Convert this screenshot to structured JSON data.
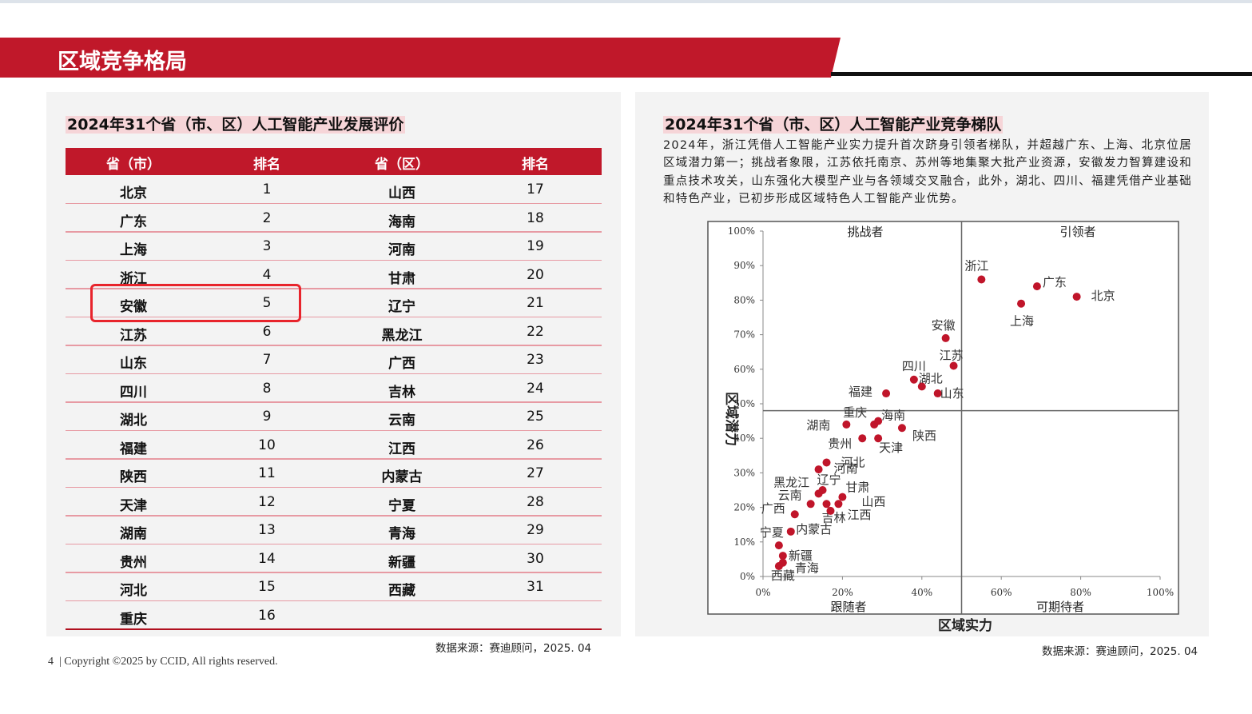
{
  "header": {
    "title": "区域竞争格局"
  },
  "left_panel": {
    "title": "2024年31个省（市、区）人工智能产业发展评价",
    "table": {
      "columns": [
        "省（市）",
        "排名",
        "省（区）",
        "排名"
      ],
      "rows": [
        [
          "北京",
          1,
          "山西",
          17
        ],
        [
          "广东",
          2,
          "海南",
          18
        ],
        [
          "上海",
          3,
          "河南",
          19
        ],
        [
          "浙江",
          4,
          "甘肃",
          20
        ],
        [
          "安徽",
          5,
          "辽宁",
          21
        ],
        [
          "江苏",
          6,
          "黑龙江",
          22
        ],
        [
          "山东",
          7,
          "广西",
          23
        ],
        [
          "四川",
          8,
          "吉林",
          24
        ],
        [
          "湖北",
          9,
          "云南",
          25
        ],
        [
          "福建",
          10,
          "江西",
          26
        ],
        [
          "陕西",
          11,
          "内蒙古",
          27
        ],
        [
          "天津",
          12,
          "宁夏",
          28
        ],
        [
          "湖南",
          13,
          "青海",
          29
        ],
        [
          "贵州",
          14,
          "新疆",
          30
        ],
        [
          "河北",
          15,
          "西藏",
          31
        ],
        [
          "重庆",
          16
        ]
      ]
    },
    "source": "数据来源：赛迪顾问，2025. 04"
  },
  "right_panel": {
    "title": "2024年31个省（市、区）人工智能产业竞争梯队",
    "paragraph": "2024年，浙江凭借人工智能产业实力提升首次跻身引领者梯队，并超越广东、上海、北京位居区域潜力第一；挑战者象限，江苏依托南京、苏州等地集聚大批产业资源，安徽发力智算建设和重点技术攻关，山东强化大模型产业与各领域交叉融合，此外，湖北、四川、福建凭借产业基础和特色产业，已初步形成区域特色人工智能产业优势。",
    "source": "数据来源：赛迪顾问，2025. 04"
  },
  "chart_data": {
    "type": "scatter",
    "x_label": "区域实力",
    "y_label": "区域潜力",
    "quadrants": {
      "top_left": "挑战者",
      "top_right": "引领者",
      "bottom_left": "跟随者",
      "bottom_right": "可期待者"
    },
    "quadrant_x": 50,
    "quadrant_y": 48,
    "color": "#c0152a",
    "labels": [
      "浙江",
      "广东",
      "北京",
      "上海",
      "安徽",
      "江苏",
      "四川",
      "湖北",
      "山东",
      "福建",
      "重庆",
      "海南",
      "湖南",
      "陕西",
      "贵州",
      "天津",
      "河北",
      "河南",
      "辽宁",
      "黑龙江",
      "甘肃",
      "云南",
      "吉林",
      "山西",
      "江西",
      "广西",
      "内蒙古",
      "宁夏",
      "新疆",
      "青海",
      "西藏"
    ],
    "x": [
      55,
      69,
      79,
      65,
      46,
      48,
      38,
      40,
      44,
      31,
      28,
      29,
      21,
      35,
      25,
      29,
      16,
      14,
      15,
      14,
      20,
      12,
      16,
      19,
      17,
      8,
      7,
      4,
      5,
      5,
      4
    ],
    "y": [
      86,
      84,
      81,
      79,
      69,
      61,
      57,
      55,
      53,
      53,
      44,
      45,
      44,
      43,
      40,
      40,
      33,
      31,
      25,
      24,
      23,
      21,
      21,
      21,
      19,
      18,
      13,
      9,
      6,
      4,
      3
    ],
    "xlim": [
      0,
      100
    ],
    "ylim": [
      0,
      100
    ],
    "xticks": [
      {
        "value": 0,
        "label": "0%"
      },
      {
        "value": 20,
        "label": "20%"
      },
      {
        "value": 40,
        "label": "40%"
      },
      {
        "value": 60,
        "label": "60%"
      },
      {
        "value": 80,
        "label": "80%"
      },
      {
        "value": 100,
        "label": "100%"
      }
    ],
    "yticks": [
      {
        "value": 0,
        "label": "0%"
      },
      {
        "value": 10,
        "label": "10%"
      },
      {
        "value": 20,
        "label": "20%"
      },
      {
        "value": 30,
        "label": "30%"
      },
      {
        "value": 40,
        "label": "40%"
      },
      {
        "value": 50,
        "label": "50%"
      },
      {
        "value": 60,
        "label": "60%"
      },
      {
        "value": 70,
        "label": "70%"
      },
      {
        "value": 80,
        "label": "80%"
      },
      {
        "value": 90,
        "label": "90%"
      },
      {
        "value": 100,
        "label": "100%"
      }
    ]
  },
  "footer": {
    "page": "4",
    "copyright": "| Copyright ©2025 by CCID, All rights reserved."
  }
}
